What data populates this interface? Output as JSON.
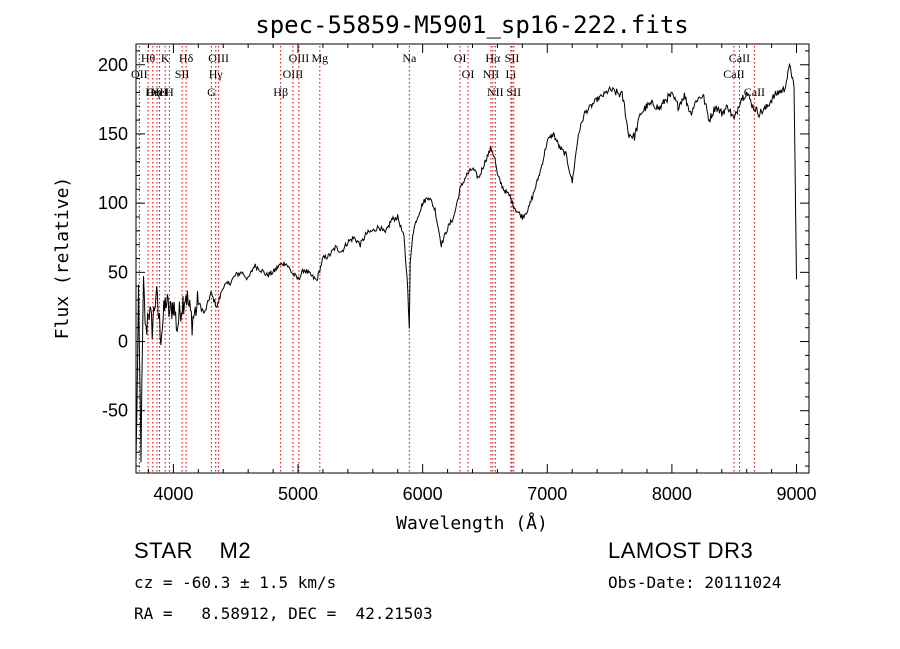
{
  "chart_data": {
    "type": "line",
    "title": "spec-55859-M5901_sp16-222.fits",
    "xlabel": "Wavelength (Å)",
    "ylabel": "Flux (relative)",
    "xlim": [
      3700,
      9100
    ],
    "ylim": [
      -95,
      215
    ],
    "x_ticks": [
      4000,
      5000,
      6000,
      7000,
      8000,
      9000
    ],
    "y_ticks": [
      -50,
      0,
      50,
      100,
      150,
      200
    ],
    "series": [
      {
        "name": "flux",
        "x": [
          3700,
          3720,
          3740,
          3760,
          3780,
          3800,
          3830,
          3860,
          3900,
          3940,
          3970,
          4000,
          4030,
          4060,
          4100,
          4150,
          4200,
          4250,
          4300,
          4350,
          4400,
          4450,
          4500,
          4550,
          4600,
          4650,
          4700,
          4750,
          4800,
          4850,
          4900,
          4950,
          5000,
          5050,
          5100,
          5150,
          5200,
          5250,
          5300,
          5350,
          5400,
          5450,
          5500,
          5550,
          5600,
          5650,
          5700,
          5750,
          5800,
          5850,
          5880,
          5893,
          5900,
          5920,
          5950,
          6000,
          6050,
          6100,
          6150,
          6200,
          6250,
          6300,
          6350,
          6400,
          6450,
          6500,
          6550,
          6580,
          6600,
          6650,
          6700,
          6720,
          6750,
          6800,
          6850,
          6900,
          6950,
          7000,
          7050,
          7100,
          7150,
          7200,
          7250,
          7300,
          7350,
          7400,
          7450,
          7500,
          7550,
          7600,
          7620,
          7650,
          7700,
          7750,
          7800,
          7850,
          7900,
          7950,
          8000,
          8050,
          8100,
          8150,
          8200,
          8250,
          8300,
          8350,
          8400,
          8450,
          8500,
          8550,
          8600,
          8650,
          8700,
          8750,
          8800,
          8850,
          8900,
          8950,
          8980,
          9000
        ],
        "values": [
          -90,
          30,
          -80,
          40,
          5,
          25,
          10,
          35,
          5,
          30,
          20,
          28,
          10,
          25,
          35,
          15,
          28,
          20,
          35,
          25,
          40,
          42,
          48,
          50,
          45,
          55,
          52,
          48,
          50,
          55,
          57,
          50,
          45,
          52,
          48,
          44,
          60,
          62,
          68,
          65,
          72,
          75,
          70,
          78,
          80,
          83,
          78,
          88,
          90,
          75,
          40,
          8,
          55,
          78,
          88,
          100,
          105,
          95,
          70,
          82,
          90,
          110,
          120,
          125,
          118,
          130,
          140,
          132,
          120,
          110,
          105,
          100,
          95,
          90,
          96,
          110,
          125,
          145,
          150,
          140,
          135,
          115,
          150,
          165,
          170,
          175,
          178,
          182,
          180,
          178,
          170,
          150,
          148,
          165,
          170,
          172,
          168,
          175,
          178,
          170,
          178,
          165,
          175,
          178,
          160,
          170,
          165,
          170,
          160,
          175,
          180,
          170,
          165,
          168,
          175,
          180,
          182,
          200,
          182,
          45
        ]
      }
    ],
    "line_markers": [
      {
        "label": "Hθ",
        "x": 3797
      },
      {
        "label": "OII",
        "x": 3727
      },
      {
        "label": "OIII",
        "x": 3869
      },
      {
        "label": "K",
        "x": 3934
      },
      {
        "label": "HeI",
        "x": 3889
      },
      {
        "label": "Hη",
        "x": 3835
      },
      {
        "label": "Hδ",
        "x": 4102
      },
      {
        "label": "SII",
        "x": 4070
      },
      {
        "label": "H",
        "x": 3968
      },
      {
        "label": "OIII",
        "x": 4363
      },
      {
        "label": "Hγ",
        "x": 4340
      },
      {
        "label": "G",
        "x": 4305
      },
      {
        "label": "OIII",
        "x": 5007
      },
      {
        "label": "OIII",
        "x": 4959
      },
      {
        "label": "Hβ",
        "x": 4861
      },
      {
        "label": "Mg",
        "x": 5175
      },
      {
        "label": "Na",
        "x": 5893
      },
      {
        "label": "OI",
        "x": 6300
      },
      {
        "label": "OI",
        "x": 6364
      },
      {
        "label": "Hα",
        "x": 6563
      },
      {
        "label": "SII",
        "x": 6717
      },
      {
        "label": "NII",
        "x": 6548
      },
      {
        "label": "Li",
        "x": 6708
      },
      {
        "label": "NII",
        "x": 6583
      },
      {
        "label": "SII",
        "x": 6731
      },
      {
        "label": "CaII",
        "x": 8542
      },
      {
        "label": "CaII",
        "x": 8498
      },
      {
        "label": "CaII",
        "x": 8662
      }
    ]
  },
  "info": {
    "class_line": "STAR    M2",
    "survey": "LAMOST DR3",
    "cz_line": "cz = -60.3 ± 1.5 km/s",
    "obs_date": "Obs-Date: 20111024",
    "radec_line": "RA =   8.58912, DEC =  42.21503"
  }
}
